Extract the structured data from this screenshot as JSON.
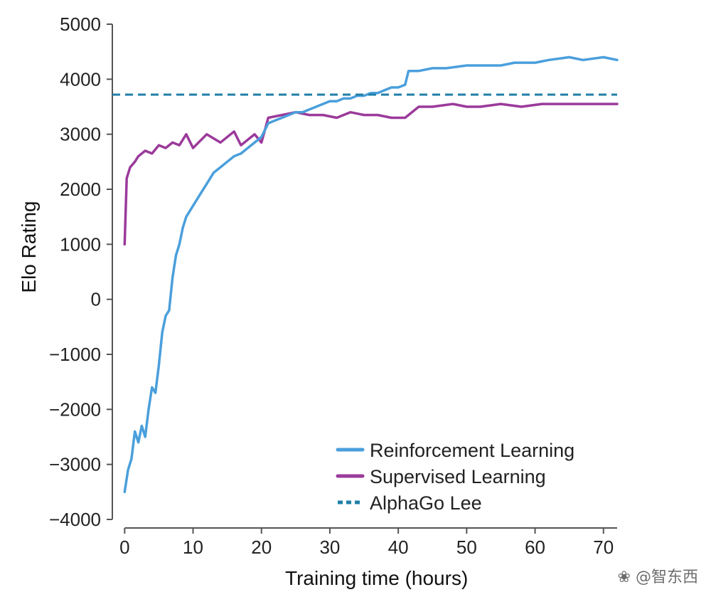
{
  "chart_data": {
    "type": "line",
    "xlabel": "Training time (hours)",
    "ylabel": "Elo Rating",
    "xlim": [
      -1.8,
      72
    ],
    "ylim": [
      -4000,
      5000
    ],
    "xticks": [
      0,
      10,
      20,
      30,
      40,
      50,
      60,
      70
    ],
    "xtick_labels": [
      "0",
      "10",
      "20",
      "30",
      "40",
      "50",
      "60",
      "70"
    ],
    "yticks": [
      -4000,
      -3000,
      -2000,
      -1000,
      0,
      1000,
      2000,
      3000,
      4000,
      5000
    ],
    "ytick_labels": [
      "−4000",
      "−3000",
      "−2000",
      "−1000",
      "0",
      "1000",
      "2000",
      "3000",
      "4000",
      "5000"
    ],
    "grid": false,
    "legend_position": "bottom-right",
    "series": [
      {
        "name": "Reinforcement Learning",
        "color": "#4a9fdc",
        "style": "solid",
        "x": [
          0,
          0.5,
          1,
          1.5,
          2,
          2.5,
          3,
          3.5,
          4,
          4.5,
          5,
          5.5,
          6,
          6.5,
          7,
          7.5,
          8,
          8.5,
          9,
          9.5,
          10,
          11,
          12,
          13,
          14,
          15,
          16,
          17,
          18,
          19,
          20,
          21,
          22,
          23,
          24,
          25,
          26,
          27,
          28,
          29,
          30,
          31,
          32,
          33,
          34,
          35,
          36,
          37,
          38,
          39,
          40,
          41,
          41.5,
          43,
          45,
          47,
          50,
          52,
          55,
          57,
          60,
          62,
          65,
          67,
          70,
          72
        ],
        "y": [
          -3500,
          -3100,
          -2900,
          -2400,
          -2600,
          -2300,
          -2500,
          -2000,
          -1600,
          -1700,
          -1200,
          -600,
          -300,
          -200,
          400,
          800,
          1000,
          1300,
          1500,
          1600,
          1700,
          1900,
          2100,
          2300,
          2400,
          2500,
          2600,
          2650,
          2750,
          2850,
          2950,
          3200,
          3250,
          3300,
          3350,
          3400,
          3400,
          3450,
          3500,
          3550,
          3600,
          3600,
          3650,
          3650,
          3700,
          3700,
          3750,
          3750,
          3800,
          3850,
          3850,
          3900,
          4150,
          4150,
          4200,
          4200,
          4250,
          4250,
          4250,
          4300,
          4300,
          4350,
          4400,
          4350,
          4400,
          4350
        ]
      },
      {
        "name": "Supervised Learning",
        "color": "#9b3a9b",
        "style": "solid",
        "x": [
          0,
          0.3,
          0.8,
          1.5,
          2,
          3,
          4,
          5,
          6,
          7,
          8,
          9,
          10,
          12,
          14,
          16,
          17,
          18,
          19,
          20,
          21,
          23,
          25,
          27,
          29,
          31,
          33,
          35,
          37,
          39,
          41,
          43,
          45,
          48,
          50,
          52,
          55,
          58,
          61,
          65,
          68,
          72
        ],
        "y": [
          1000,
          2200,
          2400,
          2500,
          2600,
          2700,
          2650,
          2800,
          2750,
          2850,
          2800,
          3000,
          2750,
          3000,
          2850,
          3050,
          2800,
          2900,
          3000,
          2850,
          3300,
          3350,
          3400,
          3350,
          3350,
          3300,
          3400,
          3350,
          3350,
          3300,
          3300,
          3500,
          3500,
          3550,
          3500,
          3500,
          3550,
          3500,
          3550,
          3550,
          3550,
          3550
        ]
      },
      {
        "name": "AlphaGo Lee",
        "color": "#1f7fa8",
        "style": "dashed",
        "x": [
          -1.8,
          72
        ],
        "y": [
          3720,
          3720
        ]
      }
    ]
  },
  "watermark": {
    "text": "智东西",
    "prefix": "@"
  }
}
